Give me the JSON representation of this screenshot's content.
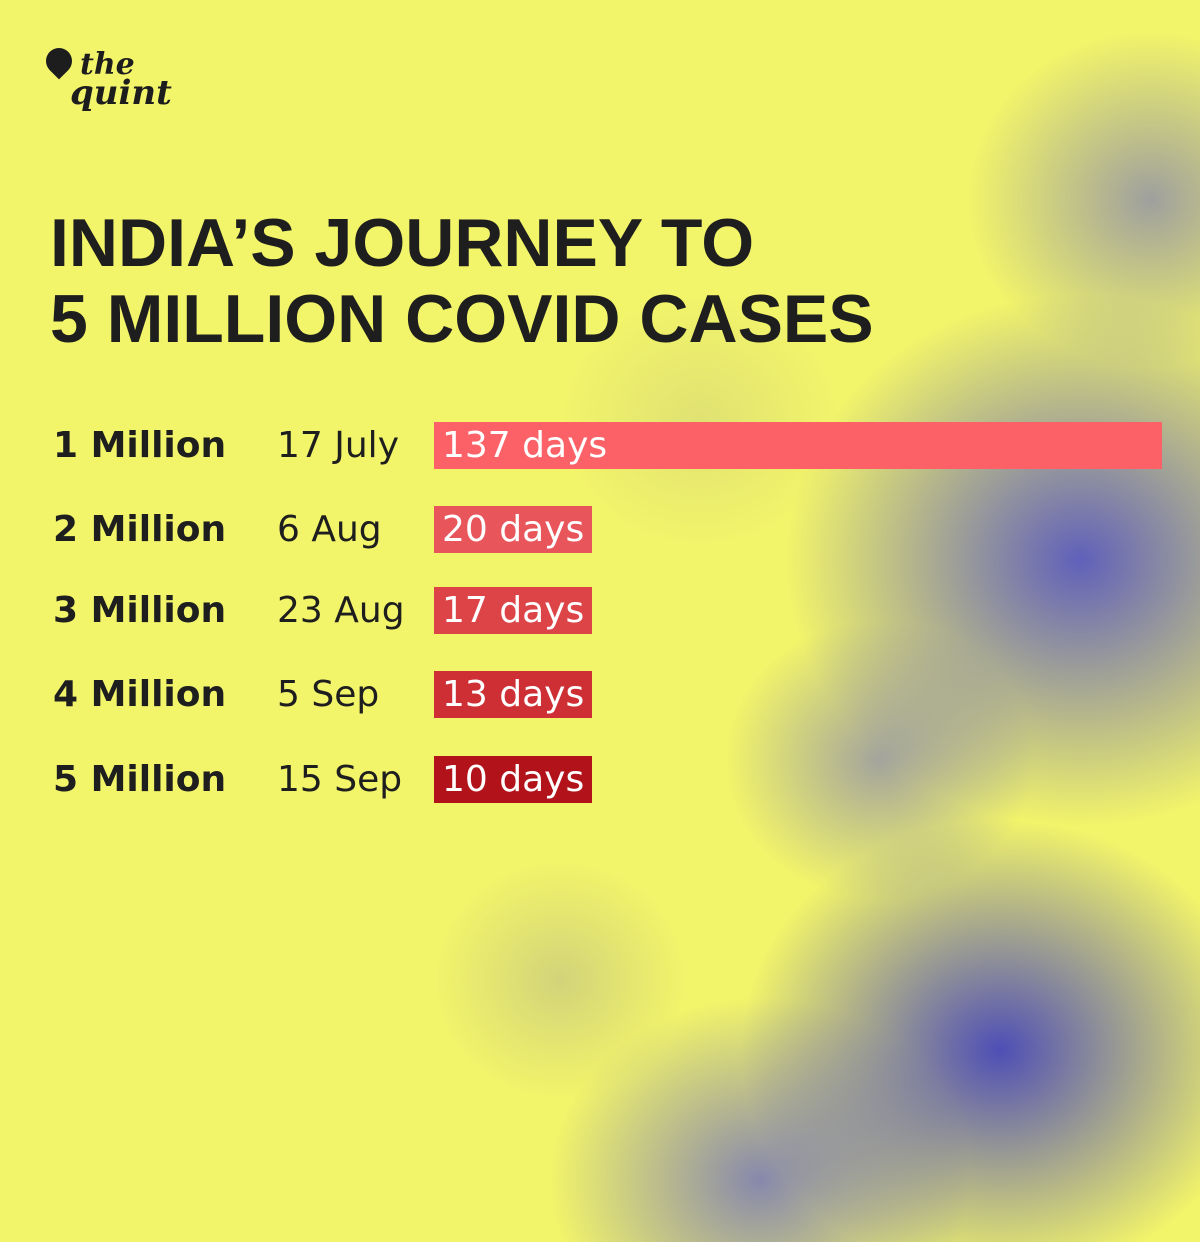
{
  "brand": {
    "line1": "the",
    "line2": "quint"
  },
  "chart_data": {
    "type": "bar",
    "orientation": "horizontal",
    "title_lines": [
      "INDIA’S JOURNEY TO",
      "5 MILLION COVID CASES"
    ],
    "categories": [
      "1 Million",
      "2 Million",
      "3 Million",
      "4 Million",
      "5 Million"
    ],
    "dates": [
      "17 July",
      "6 Aug",
      "23 Aug",
      "5 Sep",
      "15 Sep"
    ],
    "values": [
      137,
      20,
      17,
      13,
      10
    ],
    "labels": [
      "137 days",
      "20 days",
      "17 days",
      "13 days",
      "10 days"
    ],
    "colors": [
      "#fb6166",
      "#e8555b",
      "#dd4448",
      "#cd2f35",
      "#b2121a"
    ],
    "grid": false,
    "legend": false
  }
}
